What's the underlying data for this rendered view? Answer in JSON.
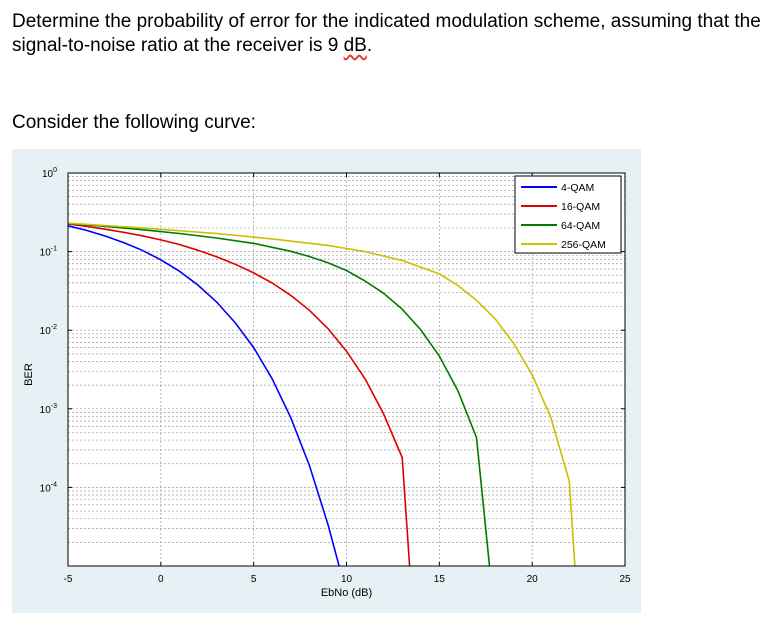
{
  "question": {
    "text_before": "Determine the probability of error for the indicated modulation scheme, assuming that the signal-to-noise ratio at the receiver is 9 ",
    "text_underlined": "dB",
    "text_after": "."
  },
  "consider": "Consider the following curve:",
  "colors": {
    "4-QAM": "#0000ff",
    "16-QAM": "#e00000",
    "64-QAM": "#007a00",
    "256-QAM": "#c8c000"
  },
  "chart_data": {
    "type": "line",
    "title": "",
    "xlabel": "EbNo (dB)",
    "ylabel": "BER",
    "xlim": [
      -5,
      25
    ],
    "ylim_log10": [
      -5,
      0
    ],
    "yscale": "log",
    "grid": true,
    "legend_position": "top-right",
    "x_ticks": [
      "-5",
      "0",
      "5",
      "10",
      "15",
      "20",
      "25"
    ],
    "y_ticks": [
      {
        "base": "10",
        "exp": "0"
      },
      {
        "base": "10",
        "exp": "-1"
      },
      {
        "base": "10",
        "exp": "-2"
      },
      {
        "base": "10",
        "exp": "-3"
      },
      {
        "base": "10",
        "exp": "-4"
      }
    ],
    "series": [
      {
        "name": "4-QAM",
        "x": [
          -5,
          -4,
          -3,
          -2,
          -1,
          0,
          1,
          2,
          3,
          4,
          5,
          6,
          7,
          8,
          9,
          9.6
        ],
        "y": [
          0.213,
          0.186,
          0.158,
          0.13,
          0.104,
          0.0786,
          0.0563,
          0.0375,
          0.0229,
          0.0125,
          0.006,
          0.0024,
          0.00077,
          0.00019,
          3.4e-05,
          1e-05
        ]
      },
      {
        "name": "16-QAM",
        "x": [
          -5,
          -4,
          -3,
          -2,
          -1,
          0,
          1,
          2,
          3,
          4,
          5,
          6,
          7,
          8,
          9,
          10,
          11,
          12,
          13,
          13.4
        ],
        "y": [
          0.225,
          0.21,
          0.193,
          0.176,
          0.159,
          0.141,
          0.123,
          0.104,
          0.086,
          0.0692,
          0.0536,
          0.0398,
          0.0277,
          0.0179,
          0.0105,
          0.0054,
          0.0024,
          0.00086,
          0.00024,
          1e-05
        ]
      },
      {
        "name": "64-QAM",
        "x": [
          -5,
          -3,
          -1,
          1,
          3,
          5,
          7,
          8,
          9,
          10,
          11,
          12,
          13,
          14,
          15,
          16,
          17,
          17.7
        ],
        "y": [
          0.228,
          0.21,
          0.19,
          0.17,
          0.149,
          0.127,
          0.101,
          0.0867,
          0.072,
          0.0574,
          0.0423,
          0.0295,
          0.0185,
          0.0101,
          0.0047,
          0.0017,
          0.00043,
          1e-05
        ]
      },
      {
        "name": "256-QAM",
        "x": [
          -5,
          -1,
          3,
          6,
          9,
          11,
          13,
          15,
          16,
          17,
          18,
          19,
          20,
          21,
          22,
          22.3
        ],
        "y": [
          0.23,
          0.2,
          0.17,
          0.145,
          0.12,
          0.1,
          0.077,
          0.052,
          0.037,
          0.024,
          0.014,
          0.0068,
          0.0027,
          0.00078,
          0.00012,
          1e-05
        ]
      }
    ]
  }
}
